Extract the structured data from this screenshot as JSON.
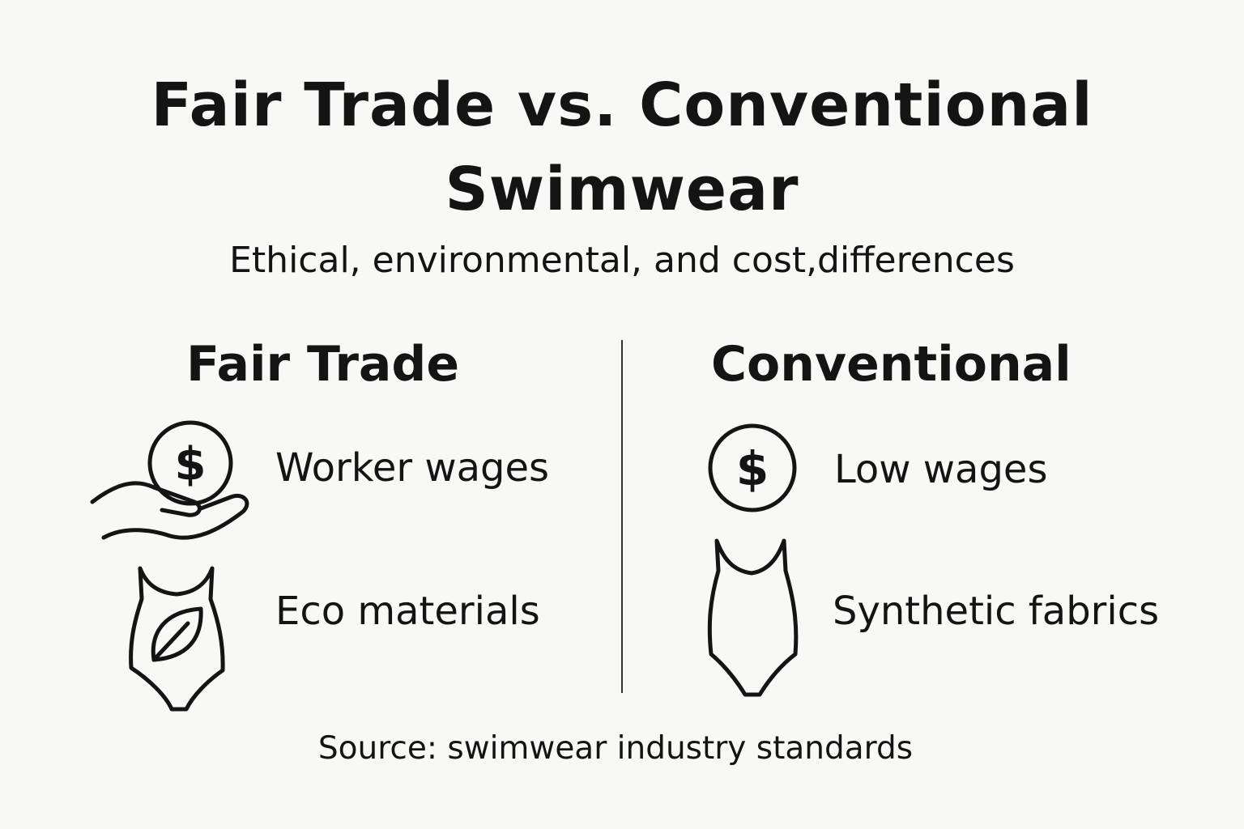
{
  "title": {
    "line1": "Fair Trade vs. Conventional",
    "line2": "Swimwear"
  },
  "subtitle": "Ethical, environmental, and cost,differences",
  "fair_trade": {
    "heading": "Fair Trade",
    "items": [
      {
        "icon": "hand-holding-coin-icon",
        "label": "Worker wages"
      },
      {
        "icon": "swimsuit-leaf-icon",
        "label": "Eco materials"
      }
    ]
  },
  "conventional": {
    "heading": "Conventional",
    "items": [
      {
        "icon": "dollar-coin-icon",
        "label": "Low wages"
      },
      {
        "icon": "swimsuit-icon",
        "label": "Synthetic fabrics"
      }
    ]
  },
  "source": "Source: swimwear industry standards"
}
